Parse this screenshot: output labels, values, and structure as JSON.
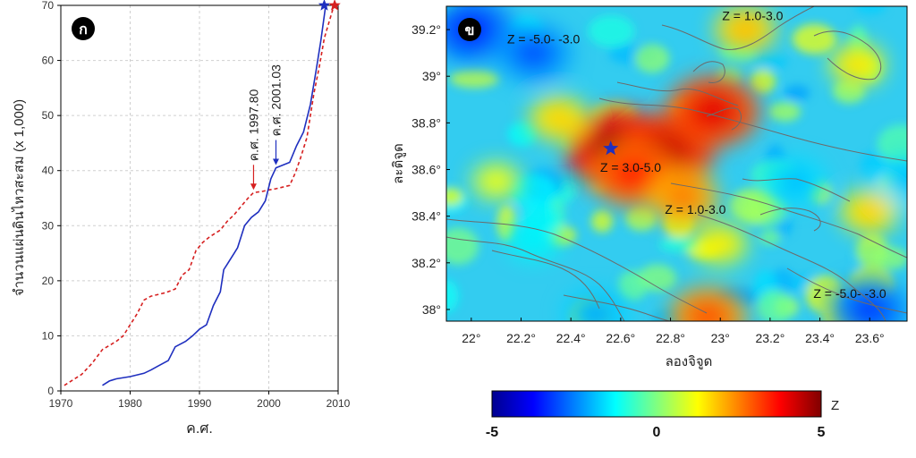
{
  "chart_data": [
    {
      "type": "line",
      "panel_label": "ก",
      "xlabel": "ค.ศ.",
      "ylabel": "จำนวนแผ่นดินไหวสะสม (x 1,000)",
      "xlim": [
        1970,
        2010
      ],
      "ylim": [
        0,
        70
      ],
      "xticks": [
        1970,
        1980,
        1990,
        2000,
        2010
      ],
      "yticks": [
        0,
        10,
        20,
        30,
        40,
        50,
        60,
        70
      ],
      "grid": true,
      "series": [
        {
          "style": "dashed",
          "color": "#d62020",
          "points": [
            [
              1970.5,
              1
            ],
            [
              1973,
              3
            ],
            [
              1974.5,
              5
            ],
            [
              1976,
              7.5
            ],
            [
              1978,
              9
            ],
            [
              1979,
              10
            ],
            [
              1980,
              12
            ],
            [
              1981,
              14
            ],
            [
              1982,
              16.5
            ],
            [
              1983,
              17.2
            ],
            [
              1985,
              17.8
            ],
            [
              1986.5,
              18.5
            ],
            [
              1987.5,
              21
            ],
            [
              1988.5,
              22
            ],
            [
              1989.5,
              25.5
            ],
            [
              1990.5,
              27
            ],
            [
              1991.5,
              28
            ],
            [
              1993,
              29.2
            ],
            [
              1994,
              30.8
            ],
            [
              1995,
              32
            ],
            [
              1996,
              33.5
            ],
            [
              1997,
              35
            ],
            [
              1997.8,
              36
            ],
            [
              1999,
              36.2
            ],
            [
              2000,
              36.5
            ],
            [
              2001,
              36.7
            ],
            [
              2002,
              37
            ],
            [
              2003,
              37.3
            ],
            [
              2003.8,
              39.5
            ],
            [
              2004.5,
              42
            ],
            [
              2005.5,
              46
            ],
            [
              2006.5,
              54
            ],
            [
              2007.3,
              59
            ],
            [
              2008,
              64
            ],
            [
              2008.7,
              67
            ],
            [
              2009.4,
              70
            ]
          ]
        },
        {
          "style": "solid",
          "color": "#1f2fbf",
          "points": [
            [
              1976,
              1
            ],
            [
              1977,
              1.8
            ],
            [
              1978,
              2.2
            ],
            [
              1980,
              2.6
            ],
            [
              1982,
              3.2
            ],
            [
              1983,
              3.8
            ],
            [
              1984,
              4.5
            ],
            [
              1985.5,
              5.5
            ],
            [
              1986.5,
              8
            ],
            [
              1988,
              9
            ],
            [
              1989,
              10
            ],
            [
              1990,
              11.2
            ],
            [
              1991,
              12
            ],
            [
              1992,
              15.5
            ],
            [
              1993,
              18
            ],
            [
              1993.5,
              22
            ],
            [
              1994,
              23
            ],
            [
              1995,
              25
            ],
            [
              1995.5,
              26
            ],
            [
              1996.5,
              30
            ],
            [
              1997.5,
              31.5
            ],
            [
              1998.5,
              32.5
            ],
            [
              1999.5,
              34.5
            ],
            [
              2000.3,
              38.5
            ],
            [
              2001.03,
              40.5
            ],
            [
              2002,
              41
            ],
            [
              2003,
              41.5
            ],
            [
              2004,
              44.5
            ],
            [
              2005,
              47
            ],
            [
              2006,
              52
            ],
            [
              2006.8,
              58
            ],
            [
              2007.5,
              63.5
            ],
            [
              2008.2,
              70
            ]
          ]
        }
      ],
      "markers": [
        {
          "x": 2008,
          "y": 70,
          "shape": "star",
          "color": "#1f2fbf"
        },
        {
          "x": 2009.5,
          "y": 70,
          "shape": "star",
          "color": "#d62020"
        }
      ],
      "annotations": [
        {
          "text": "ค.ศ. 1997.80",
          "color": "#d62020",
          "x": 1997.8,
          "y_tip": 36.5
        },
        {
          "text": "ค.ศ. 2001.03",
          "color": "#1f2fbf",
          "x": 2001.03,
          "y_tip": 41
        }
      ]
    },
    {
      "type": "heatmap",
      "panel_label": "ข",
      "xlabel": "ลองจิจูด",
      "ylabel": "ละติจูด",
      "xlim": [
        21.9,
        23.75
      ],
      "ylim": [
        37.95,
        39.3
      ],
      "xticks": [
        22,
        22.2,
        22.4,
        22.6,
        22.8,
        23,
        23.2,
        23.4,
        23.6
      ],
      "xtick_labels": [
        "22°",
        "22.2°",
        "22.4°",
        "22.6°",
        "22.8°",
        "23°",
        "23.2°",
        "23.4°",
        "23.6°"
      ],
      "yticks": [
        38,
        38.2,
        38.4,
        38.6,
        38.8,
        39,
        39.2
      ],
      "ytick_labels": [
        "38°",
        "38.2°",
        "38.4°",
        "38.6°",
        "38.8°",
        "39°",
        "39.2°"
      ],
      "epicenter": {
        "x": 22.56,
        "y": 38.69,
        "shape": "star",
        "color": "#1f2fbf"
      },
      "hotspots": [
        {
          "x": 22.6,
          "y": 38.68,
          "z": 5
        },
        {
          "x": 22.78,
          "y": 38.68,
          "z": 4.3
        },
        {
          "x": 22.65,
          "y": 38.58,
          "z": 3.5
        },
        {
          "x": 22.85,
          "y": 38.48,
          "z": 2.6
        },
        {
          "x": 22.97,
          "y": 38.85,
          "z": 4
        },
        {
          "x": 23.1,
          "y": 39.2,
          "z": 2
        },
        {
          "x": 22.35,
          "y": 38.82,
          "z": 1.8
        },
        {
          "x": 23.6,
          "y": 38.42,
          "z": 1.8
        },
        {
          "x": 23.0,
          "y": 38.28,
          "z": 1.5
        },
        {
          "x": 22.95,
          "y": 37.97,
          "z": 3
        },
        {
          "x": 23.55,
          "y": 39.05,
          "z": 1.6
        },
        {
          "x": 22.1,
          "y": 38.55,
          "z": 1.2
        },
        {
          "x": 22.0,
          "y": 39.2,
          "z": -3.5
        },
        {
          "x": 22.25,
          "y": 39.1,
          "z": -3
        },
        {
          "x": 23.6,
          "y": 38.0,
          "z": -3.2
        },
        {
          "x": 23.3,
          "y": 38.55,
          "z": -2
        },
        {
          "x": 22.25,
          "y": 38.3,
          "z": -1.5
        },
        {
          "x": 22.5,
          "y": 37.98,
          "z": -2.2
        },
        {
          "x": 23.75,
          "y": 38.55,
          "z": -2
        }
      ],
      "annotations": [
        {
          "text": "Z = -5.0- -3.0",
          "x": 22.29,
          "y": 39.14
        },
        {
          "text": "Z = 1.0-3.0",
          "x": 23.13,
          "y": 39.24
        },
        {
          "text": "Z = 3.0-5.0",
          "x": 22.64,
          "y": 38.59
        },
        {
          "text": "Z = 1.0-3.0",
          "x": 22.9,
          "y": 38.41
        },
        {
          "text": "Z = -5.0- -3.0",
          "x": 23.52,
          "y": 38.05
        }
      ],
      "colorbar": {
        "label": "Z",
        "min": -5,
        "max": 5,
        "tick_labels": [
          "-5",
          "0",
          "5"
        ],
        "stops": [
          "#00008f",
          "#0000ff",
          "#0080ff",
          "#00ffff",
          "#80ff80",
          "#ffff00",
          "#ff8000",
          "#ff0000",
          "#800000"
        ]
      }
    }
  ]
}
